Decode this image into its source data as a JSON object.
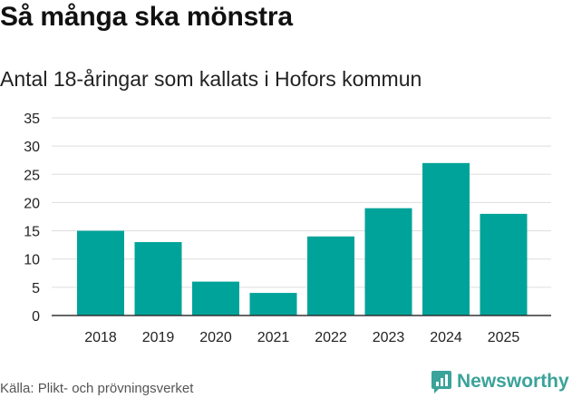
{
  "title": "Så många ska mönstra",
  "subtitle": "Antal 18-åringar som kallats i Hofors kommun",
  "source": "Källa: Plikt- och prövningsverket",
  "brand": {
    "name": "Newsworthy",
    "icon": "newsworthy-logo-icon",
    "color": "#3aa39a"
  },
  "chart_data": {
    "type": "bar",
    "categories": [
      "2018",
      "2019",
      "2020",
      "2021",
      "2022",
      "2023",
      "2024",
      "2025"
    ],
    "values": [
      15,
      13,
      6,
      4,
      14,
      19,
      27,
      18
    ],
    "xlabel": "",
    "ylabel": "",
    "ylim": [
      0,
      35
    ],
    "yticks": [
      0,
      5,
      10,
      15,
      20,
      25,
      30,
      35
    ],
    "grid": true,
    "bar_color": "#00a39a"
  }
}
